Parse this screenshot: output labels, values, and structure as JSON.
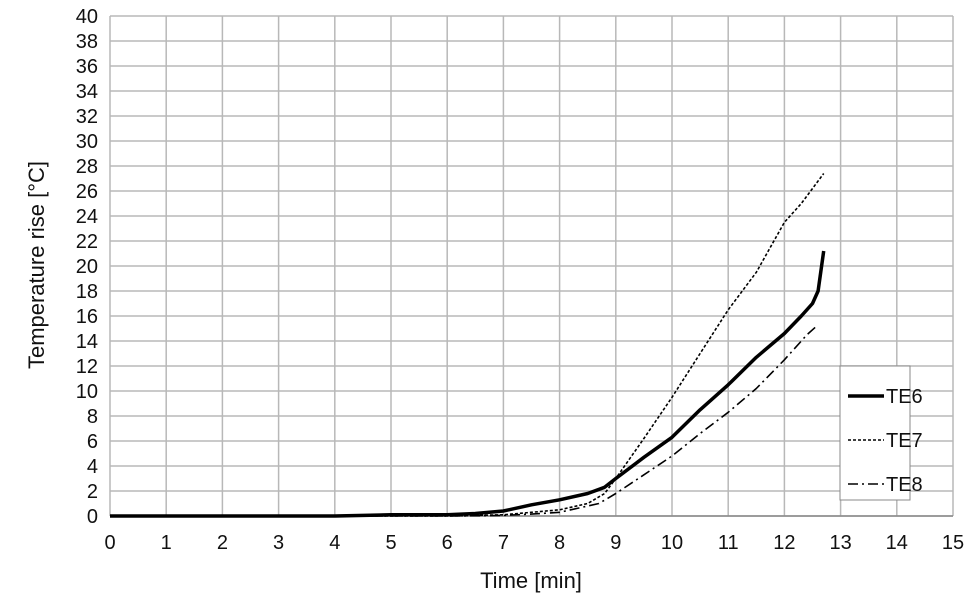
{
  "chart_data": {
    "type": "line",
    "title": "",
    "xlabel": "Time [min]",
    "ylabel": "Temperature rise [°C]",
    "xlim": [
      0,
      15
    ],
    "ylim": [
      0,
      40
    ],
    "xticks": [
      0,
      1,
      2,
      3,
      4,
      5,
      6,
      7,
      8,
      9,
      10,
      11,
      12,
      13,
      14,
      15
    ],
    "yticks": [
      0,
      2,
      4,
      6,
      8,
      10,
      12,
      14,
      16,
      18,
      20,
      22,
      24,
      26,
      28,
      30,
      32,
      34,
      36,
      38,
      40
    ],
    "grid": true,
    "legend_position": "right",
    "series": [
      {
        "name": "TE6",
        "style": "solid-thick",
        "color": "#000000",
        "x": [
          0,
          1,
          2,
          3,
          4,
          5,
          6,
          6.5,
          7,
          7.5,
          8,
          8.5,
          8.8,
          9,
          9.5,
          10,
          10.5,
          11,
          11.5,
          12,
          12.3,
          12.5,
          12.6,
          12.7
        ],
        "y": [
          0,
          0,
          0,
          0,
          0,
          0.1,
          0.1,
          0.2,
          0.4,
          0.9,
          1.3,
          1.8,
          2.3,
          3,
          4.7,
          6.3,
          8.5,
          10.5,
          12.7,
          14.6,
          16,
          17,
          18,
          21.2
        ]
      },
      {
        "name": "TE7",
        "style": "dotted",
        "color": "#000000",
        "x": [
          0,
          1,
          2,
          3,
          4,
          5,
          6,
          7,
          7.5,
          8,
          8.5,
          8.8,
          9,
          9.5,
          10,
          10.5,
          11,
          11.5,
          12,
          12.3,
          12.7
        ],
        "y": [
          0,
          0,
          0,
          0,
          0,
          0,
          0,
          0.1,
          0.3,
          0.5,
          1,
          1.8,
          3,
          6.2,
          9.5,
          13,
          16.5,
          19.5,
          23.5,
          25,
          27.4
        ]
      },
      {
        "name": "TE8",
        "style": "dash-dot",
        "color": "#000000",
        "x": [
          0,
          1,
          2,
          3,
          4,
          5,
          6,
          7,
          7.5,
          8,
          8.7,
          9,
          9.5,
          10,
          10.5,
          11,
          11.5,
          12,
          12.4,
          12.6
        ],
        "y": [
          0,
          0,
          0,
          0,
          0,
          0,
          0,
          0.05,
          0.15,
          0.3,
          1,
          1.8,
          3.3,
          4.8,
          6.6,
          8.3,
          10.2,
          12.5,
          14.5,
          15.3
        ]
      }
    ]
  }
}
